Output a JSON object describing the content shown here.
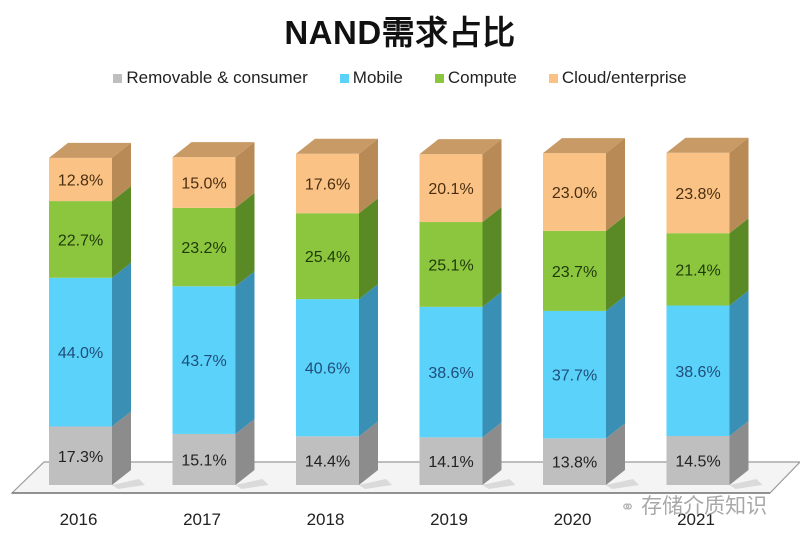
{
  "chart_data": {
    "type": "bar",
    "stacked": true,
    "three_d": true,
    "title": "NAND需求占比",
    "xlabel": "",
    "ylabel": "",
    "ylim": [
      0,
      100
    ],
    "legend_position": "top",
    "grid": false,
    "categories": [
      "2016",
      "2017",
      "2018",
      "2019",
      "2020",
      "2021"
    ],
    "series": [
      {
        "name": "Removable & consumer",
        "color": "#BFBFBF",
        "side_color": "#8C8C8C",
        "top_color": "#D9D9D9",
        "label_color": "#222222",
        "values": [
          17.3,
          15.1,
          14.4,
          14.1,
          13.8,
          14.5
        ],
        "labels": [
          "17.3%",
          "15.1%",
          "14.4%",
          "14.1%",
          "13.8%",
          "14.5%"
        ]
      },
      {
        "name": "Mobile",
        "color": "#5AD2FA",
        "side_color": "#3A8FB5",
        "top_color": "#8CE0FB",
        "label_color": "#1F4E79",
        "values": [
          44.0,
          43.7,
          40.6,
          38.6,
          37.7,
          38.6
        ],
        "labels": [
          "44.0%",
          "43.7%",
          "40.6%",
          "38.6%",
          "37.7%",
          "38.6%"
        ]
      },
      {
        "name": "Compute",
        "color": "#8CC63F",
        "side_color": "#5A8A26",
        "top_color": "#A9D86A",
        "label_color": "#1E3A0A",
        "values": [
          22.7,
          23.2,
          25.4,
          25.1,
          23.7,
          21.4
        ],
        "labels": [
          "22.7%",
          "23.2%",
          "25.4%",
          "25.1%",
          "23.7%",
          "21.4%"
        ]
      },
      {
        "name": "Cloud/enterprise",
        "color": "#FAC385",
        "side_color": "#B88A56",
        "top_color": "#C79A66",
        "label_color": "#4A2E10",
        "values": [
          12.8,
          15.0,
          17.6,
          20.1,
          23.0,
          23.8
        ],
        "labels": [
          "12.8%",
          "15.0%",
          "17.6%",
          "20.1%",
          "23.0%",
          "23.8%"
        ]
      }
    ]
  },
  "watermark": {
    "icon": "wechat-icon",
    "text": "存储介质知识"
  }
}
